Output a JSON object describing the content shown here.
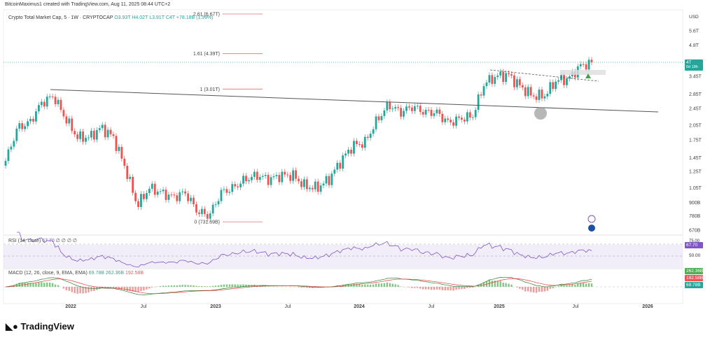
{
  "header": {
    "created": "BitcoinMaximus1 created with TradingView.com, Aug 11, 2025 08:44 UTC+2",
    "symbol": "Crypto Total Market Cap, 5 · 1W · CRYPTOCAP",
    "o": "O3.93T",
    "h": "H4.02T",
    "l": "L3.91T",
    "c": "C4T",
    "chg": "+78.18B (1.99%)"
  },
  "fib": [
    {
      "label": "2.61 (6.67T)",
      "value": 6.67
    },
    {
      "label": "1.61 (4.39T)",
      "value": 4.39
    },
    {
      "label": "1 (3.01T)",
      "value": 3.01
    },
    {
      "label": "0 (731.69B)",
      "value": 0.73169
    }
  ],
  "price_axis": {
    "currency": "USD",
    "last": "4T",
    "countdown": "6d 18h"
  },
  "rsi": {
    "title": "RSI (14, close)",
    "value": "67.70",
    "extras": "∅ ∅ ∅ ∅",
    "lvl75": "75.00",
    "lvl50": "50.00"
  },
  "macd": {
    "title": "MACD (12, 26, close, 9, EMA, EMA)",
    "hist": "69.78B",
    "macd": "262.36B",
    "signal": "192.58B"
  },
  "footer": {
    "brand": "TradingView"
  },
  "colors": {
    "up": "#26a69a",
    "down": "#ef5350",
    "rsi": "#7e57c2",
    "fib": "#d9707a"
  },
  "chart_data": {
    "type": "candlestick",
    "title": "Crypto Total Market Cap, 5 · 1W · CRYPTOCAP",
    "scale": "log",
    "yticks": [
      {
        "v": 5.6,
        "l": "5.6T"
      },
      {
        "v": 4.8,
        "l": "4.8T"
      },
      {
        "v": 3.45,
        "l": "3.45T"
      },
      {
        "v": 2.85,
        "l": "2.85T"
      },
      {
        "v": 2.45,
        "l": "2.45T"
      },
      {
        "v": 2.05,
        "l": "2.05T"
      },
      {
        "v": 1.75,
        "l": "1.75T"
      },
      {
        "v": 1.45,
        "l": "1.45T"
      },
      {
        "v": 1.25,
        "l": "1.25T"
      },
      {
        "v": 1.05,
        "l": "1.05T"
      },
      {
        "v": 0.9,
        "l": "900B"
      },
      {
        "v": 0.78,
        "l": "780B"
      },
      {
        "v": 0.67,
        "l": "670B"
      }
    ],
    "xticks": [
      "2022",
      "Jul",
      "2023",
      "Jul",
      "2024",
      "Jul",
      "2025",
      "Jul",
      "2026"
    ],
    "monthly_close_T": {
      "start": "Jul 2021",
      "values": [
        1.4,
        2.0,
        2.1,
        2.6,
        2.8,
        2.2,
        1.8,
        1.8,
        2.0,
        1.8,
        1.3,
        0.87,
        1.05,
        1.0,
        0.95,
        1.0,
        0.82,
        0.78,
        1.0,
        1.05,
        1.15,
        1.2,
        1.15,
        1.2,
        1.2,
        1.07,
        1.05,
        1.15,
        1.4,
        1.65,
        1.7,
        2.15,
        2.55,
        2.35,
        2.5,
        2.35,
        2.35,
        2.1,
        2.2,
        2.25,
        3.2,
        3.45,
        3.5,
        3.1,
        2.8,
        2.8,
        3.3,
        3.35,
        3.85,
        4.0
      ]
    },
    "ylim": [
      0.65,
      6.0
    ]
  }
}
